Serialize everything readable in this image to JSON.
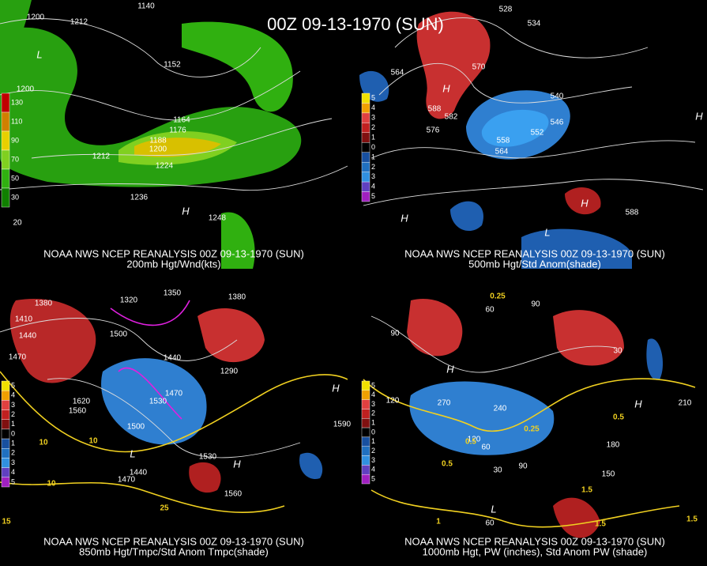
{
  "title": "00Z 09-13-1970 (SUN)",
  "panels": [
    {
      "source": "NOAA NWS NCEP REANALYSIS 00Z 09-13-1970 (SUN)",
      "caption": "200mb Hgt/Wnd(kts)",
      "legend": [
        {
          "label": "130",
          "color": "#c00000"
        },
        {
          "label": "110",
          "color": "#d08000"
        },
        {
          "label": "90",
          "color": "#e8d000"
        },
        {
          "label": "70",
          "color": "#80d020"
        },
        {
          "label": "50",
          "color": "#30b010"
        },
        {
          "label": "30",
          "color": "#108000"
        }
      ],
      "labels": [
        "1140",
        "1200",
        "1212",
        "L",
        "1152",
        "1200",
        "1164",
        "1176",
        "1188",
        "1200",
        "1212",
        "1224",
        "1236",
        "H",
        "1248",
        "20"
      ]
    },
    {
      "source": "NOAA NWS NCEP REANALYSIS 00Z 09-13-1970 (SUN)",
      "caption": "500mb Hgt/Std Anom(shade)",
      "legend": [
        {
          "label": "5",
          "color": "#f0e000"
        },
        {
          "label": "4",
          "color": "#f0a000"
        },
        {
          "label": "3",
          "color": "#e04040"
        },
        {
          "label": "2",
          "color": "#c02020"
        },
        {
          "label": "1",
          "color": "#801010"
        },
        {
          "label": "0",
          "color": "#000000"
        },
        {
          "label": "1",
          "color": "#1850a0"
        },
        {
          "label": "2",
          "color": "#2070c0"
        },
        {
          "label": "3",
          "color": "#3090e0"
        },
        {
          "label": "4",
          "color": "#6040c0"
        },
        {
          "label": "5",
          "color": "#a020c0"
        }
      ],
      "labels": [
        "528",
        "534",
        "H",
        "564",
        "570",
        "588",
        "582",
        "576",
        "540",
        "546",
        "552",
        "558",
        "564",
        "H",
        "H",
        "588",
        "H",
        "L"
      ]
    },
    {
      "source": "NOAA NWS NCEP REANALYSIS 00Z 09-13-1970 (SUN)",
      "caption": "850mb Hgt/Tmpc/Std Anom Tmpc(shade)",
      "legend": [
        {
          "label": "5",
          "color": "#f0e000"
        },
        {
          "label": "4",
          "color": "#f0a000"
        },
        {
          "label": "3",
          "color": "#e04040"
        },
        {
          "label": "2",
          "color": "#c02020"
        },
        {
          "label": "1",
          "color": "#801010"
        },
        {
          "label": "0",
          "color": "#000000"
        },
        {
          "label": "1",
          "color": "#1850a0"
        },
        {
          "label": "2",
          "color": "#2070c0"
        },
        {
          "label": "3",
          "color": "#3090e0"
        },
        {
          "label": "4",
          "color": "#6040c0"
        },
        {
          "label": "5",
          "color": "#a020c0"
        }
      ],
      "labels": [
        "1380",
        "1350",
        "1320",
        "1380",
        "1410",
        "1440",
        "1500",
        "1470",
        "1440",
        "1290",
        "1530",
        "1470",
        "1560",
        "1500",
        "1530",
        "1590",
        "H",
        "H",
        "L",
        "1440",
        "1470",
        "1560",
        "10",
        "10",
        "10",
        "25",
        "15",
        "1620"
      ]
    },
    {
      "source": "NOAA NWS NCEP REANALYSIS 00Z 09-13-1970 (SUN)",
      "caption": "1000mb Hgt, PW (inches), Std Anom PW (shade)",
      "legend": [
        {
          "label": "5",
          "color": "#f0e000"
        },
        {
          "label": "4",
          "color": "#f0a000"
        },
        {
          "label": "3",
          "color": "#e04040"
        },
        {
          "label": "2",
          "color": "#c02020"
        },
        {
          "label": "1",
          "color": "#801010"
        },
        {
          "label": "0",
          "color": "#000000"
        },
        {
          "label": "1",
          "color": "#1850a0"
        },
        {
          "label": "2",
          "color": "#2070c0"
        },
        {
          "label": "3",
          "color": "#3090e0"
        },
        {
          "label": "4",
          "color": "#6040c0"
        },
        {
          "label": "5",
          "color": "#a020c0"
        }
      ],
      "labels": [
        "0.25",
        "90",
        "60",
        "90",
        "H",
        "30",
        "120",
        "270",
        "240",
        "120",
        "60",
        "0.5",
        "30",
        "90",
        "0.5",
        "0.25",
        "150",
        "180",
        "0.5",
        "H",
        "210",
        "1.5",
        "1",
        "1.5",
        "1.5",
        "60",
        "L"
      ]
    }
  ]
}
